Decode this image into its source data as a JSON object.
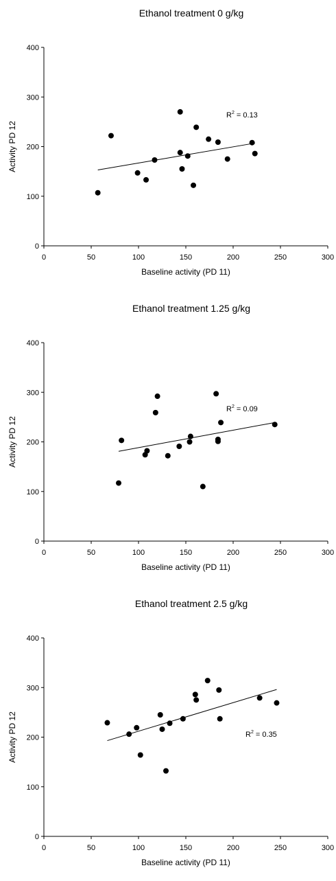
{
  "chart_data": [
    {
      "type": "scatter",
      "title": "Ethanol treatment 0 g/kg",
      "xlabel": "Baseline activity (PD 11)",
      "ylabel": "Activity PD 12",
      "xlim": [
        0,
        300
      ],
      "ylim": [
        0,
        400
      ],
      "xticks": [
        "0",
        "50",
        "100",
        "150",
        "200",
        "250",
        "300"
      ],
      "yticks": [
        "0",
        "100",
        "200",
        "300",
        "400"
      ],
      "grid": false,
      "annotation": {
        "r2_prefix": "R",
        "r2_sup": "2",
        "r2_value": " = 0.13"
      },
      "points": [
        {
          "x": 57,
          "y": 107
        },
        {
          "x": 71,
          "y": 222
        },
        {
          "x": 99,
          "y": 147
        },
        {
          "x": 108,
          "y": 133
        },
        {
          "x": 117,
          "y": 173
        },
        {
          "x": 144,
          "y": 270
        },
        {
          "x": 144,
          "y": 188
        },
        {
          "x": 146,
          "y": 155
        },
        {
          "x": 152,
          "y": 181
        },
        {
          "x": 158,
          "y": 122
        },
        {
          "x": 161,
          "y": 239
        },
        {
          "x": 174,
          "y": 215
        },
        {
          "x": 184,
          "y": 209
        },
        {
          "x": 194,
          "y": 175
        },
        {
          "x": 220,
          "y": 208
        },
        {
          "x": 223,
          "y": 186
        }
      ],
      "trendline": {
        "x": [
          57,
          223
        ],
        "y": [
          153,
          207
        ]
      }
    },
    {
      "type": "scatter",
      "title": "Ethanol treatment 1.25 g/kg",
      "xlabel": "Baseline activity (PD 11)",
      "ylabel": "Activity PD 12",
      "xlim": [
        0,
        300
      ],
      "ylim": [
        0,
        400
      ],
      "xticks": [
        "0",
        "50",
        "100",
        "150",
        "200",
        "250",
        "300"
      ],
      "yticks": [
        "0",
        "100",
        "200",
        "300",
        "400"
      ],
      "grid": false,
      "annotation": {
        "r2_prefix": "R",
        "r2_sup": "2",
        "r2_value": " = 0.09"
      },
      "points": [
        {
          "x": 79,
          "y": 117
        },
        {
          "x": 82,
          "y": 203
        },
        {
          "x": 107,
          "y": 174
        },
        {
          "x": 109,
          "y": 182
        },
        {
          "x": 118,
          "y": 259
        },
        {
          "x": 120,
          "y": 292
        },
        {
          "x": 131,
          "y": 172
        },
        {
          "x": 143,
          "y": 191
        },
        {
          "x": 154,
          "y": 200
        },
        {
          "x": 155,
          "y": 211
        },
        {
          "x": 168,
          "y": 110
        },
        {
          "x": 182,
          "y": 297
        },
        {
          "x": 184,
          "y": 205
        },
        {
          "x": 184,
          "y": 201
        },
        {
          "x": 187,
          "y": 239
        },
        {
          "x": 244,
          "y": 235
        }
      ],
      "trendline": {
        "x": [
          79,
          244
        ],
        "y": [
          181,
          239
        ]
      }
    },
    {
      "type": "scatter",
      "title": "Ethanol treatment 2.5 g/kg",
      "xlabel": "Baseline activity (PD 11)",
      "ylabel": "Activity PD 12",
      "xlim": [
        0,
        300
      ],
      "ylim": [
        0,
        400
      ],
      "xticks": [
        "0",
        "50",
        "100",
        "150",
        "200",
        "250",
        "300"
      ],
      "yticks": [
        "0",
        "100",
        "200",
        "300",
        "400"
      ],
      "grid": false,
      "annotation": {
        "r2_prefix": "R",
        "r2_sup": "2",
        "r2_value": " = 0.35"
      },
      "points": [
        {
          "x": 67,
          "y": 229
        },
        {
          "x": 90,
          "y": 206
        },
        {
          "x": 98,
          "y": 219
        },
        {
          "x": 102,
          "y": 164
        },
        {
          "x": 123,
          "y": 245
        },
        {
          "x": 125,
          "y": 216
        },
        {
          "x": 129,
          "y": 132
        },
        {
          "x": 133,
          "y": 228
        },
        {
          "x": 147,
          "y": 237
        },
        {
          "x": 160,
          "y": 286
        },
        {
          "x": 161,
          "y": 275
        },
        {
          "x": 173,
          "y": 314
        },
        {
          "x": 185,
          "y": 295
        },
        {
          "x": 186,
          "y": 237
        },
        {
          "x": 228,
          "y": 279
        },
        {
          "x": 246,
          "y": 269
        }
      ],
      "trendline": {
        "x": [
          67,
          246
        ],
        "y": [
          193,
          296
        ]
      }
    }
  ]
}
